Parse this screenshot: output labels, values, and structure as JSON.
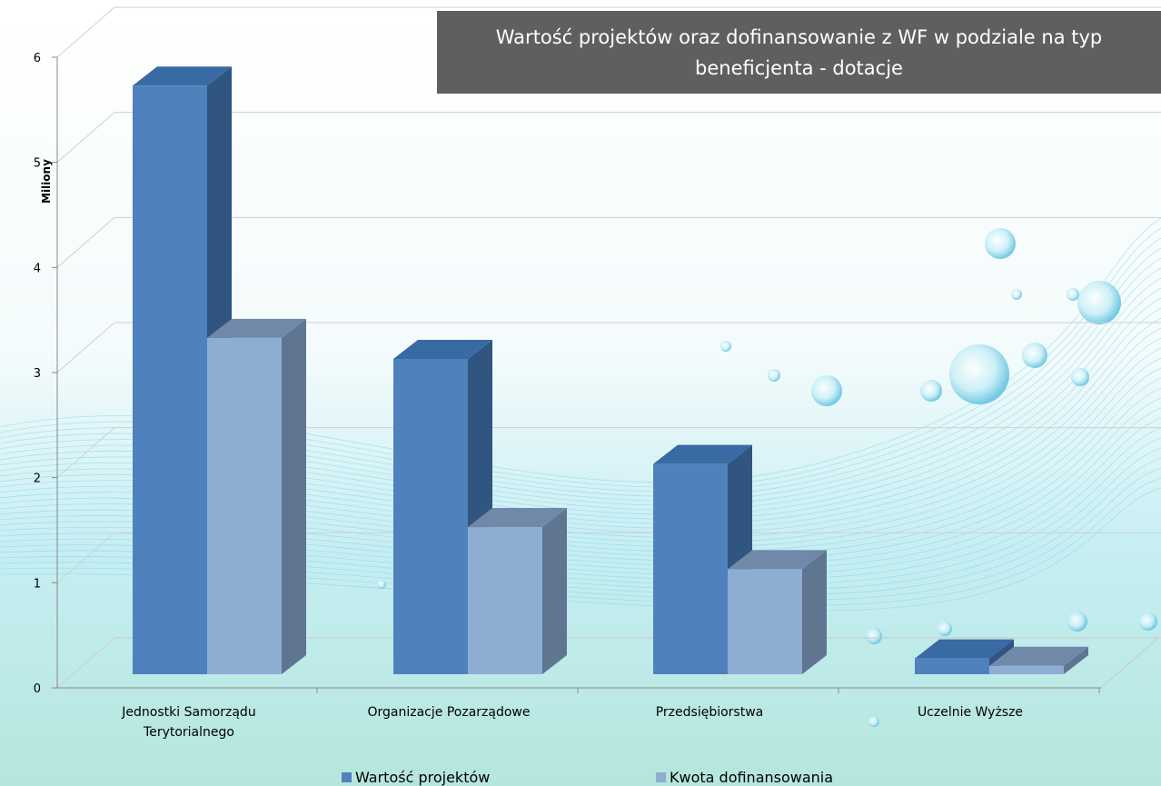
{
  "chart_data": {
    "type": "bar",
    "title": "Wartość projektów oraz dofinansowanie z WF w podziale na typ beneficjenta - dotacje",
    "ylabel": "Miliony",
    "xlabel": "",
    "ylim": [
      0,
      6
    ],
    "yticks": [
      "0",
      "1",
      "2",
      "3",
      "4",
      "5",
      "6"
    ],
    "categories": [
      [
        "Jednostki Samorządu",
        "Terytorialnego"
      ],
      [
        "Organizacje Pozarządowe"
      ],
      [
        "Przedsiębiorstwa"
      ],
      [
        "Uczelnie Wyższe"
      ]
    ],
    "series": [
      {
        "name": "Wartość projektów",
        "values": [
          5.6,
          3.0,
          2.0,
          0.15
        ]
      },
      {
        "name": "Kwota dofinansowania",
        "values": [
          3.2,
          1.4,
          1.0,
          0.08
        ]
      }
    ],
    "legend_position": "bottom",
    "grid": true,
    "colors": {
      "series1_front": "#4f81bd",
      "series1_side": "#2f5580",
      "series1_top": "#3a6aa3",
      "series2_front": "#8eadd3",
      "series2_side": "#5f7590",
      "series2_top": "#7089a8"
    }
  },
  "title_box": {
    "line1": "Wartość projektów oraz dofinansowanie z WF w podziale na typ",
    "line2": "beneficjenta - dotacje"
  },
  "legend": {
    "series1": "Wartość projektów",
    "series2": "Kwota dofinansowania"
  }
}
